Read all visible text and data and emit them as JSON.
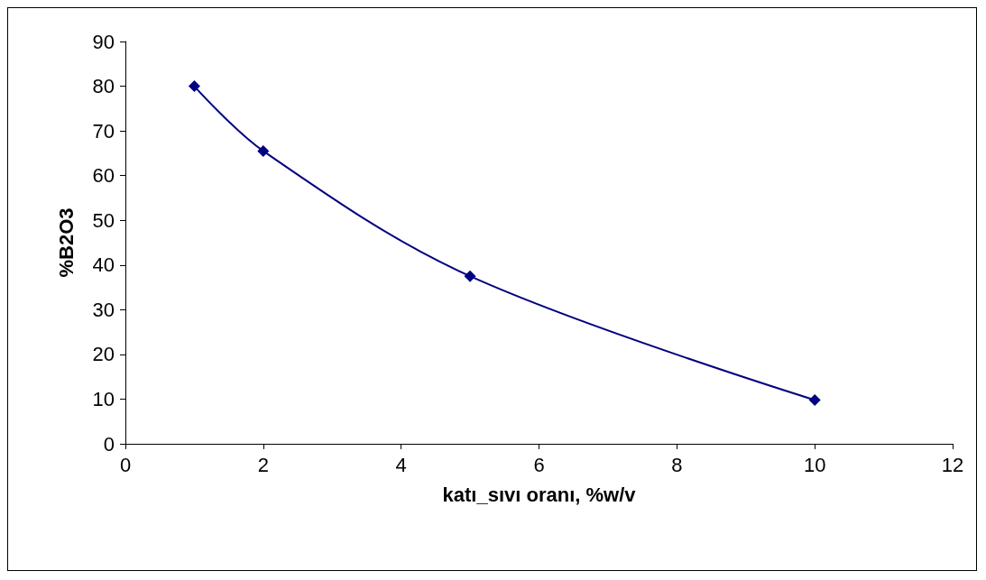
{
  "chart_data": {
    "type": "line",
    "xlabel": "katı_sıvı oranı, %w/v",
    "ylabel": "%B2O3",
    "x": [
      1,
      2,
      5,
      10
    ],
    "series": [
      {
        "color": "#000080",
        "values": [
          80,
          65.5,
          37.5,
          9.8
        ]
      }
    ],
    "xlim": [
      0,
      12
    ],
    "xticks": [
      0,
      2,
      4,
      6,
      8,
      10,
      12
    ],
    "ylim": [
      0,
      90
    ],
    "yticks": [
      0,
      10,
      20,
      30,
      40,
      50,
      60,
      70,
      80,
      90
    ],
    "grid": false,
    "marker": "diamond",
    "line_style": "solid"
  }
}
